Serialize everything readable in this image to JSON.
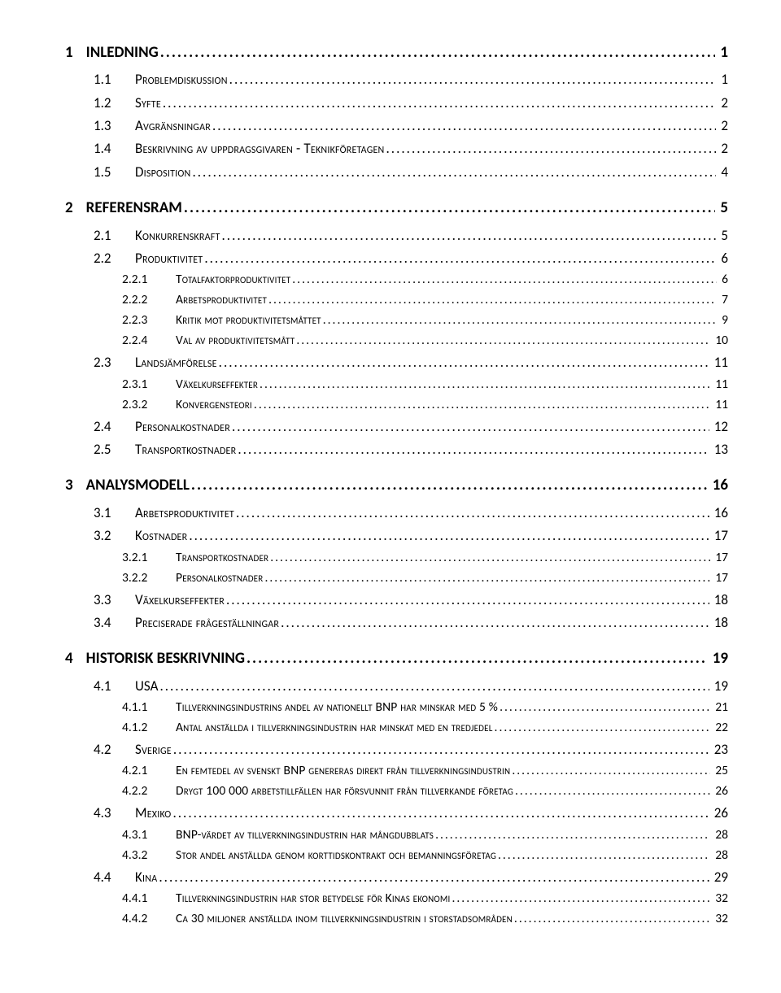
{
  "toc": [
    {
      "level": 1,
      "num": "1",
      "title": "INLEDNING",
      "page": "1",
      "smallcaps": false
    },
    {
      "level": 2,
      "num": "1.1",
      "title": "Problemdiskussion",
      "page": "1",
      "smallcaps": true
    },
    {
      "level": 2,
      "num": "1.2",
      "title": "Syfte",
      "page": "2",
      "smallcaps": true
    },
    {
      "level": 2,
      "num": "1.3",
      "title": "Avgränsningar",
      "page": "2",
      "smallcaps": true
    },
    {
      "level": 2,
      "num": "1.4",
      "title": "Beskrivning av uppdragsgivaren - Teknikföretagen",
      "page": "2",
      "smallcaps": true
    },
    {
      "level": 2,
      "num": "1.5",
      "title": "Disposition",
      "page": "4",
      "smallcaps": true
    },
    {
      "level": 1,
      "num": "2",
      "title": "REFERENSRAM",
      "page": "5",
      "smallcaps": false
    },
    {
      "level": 2,
      "num": "2.1",
      "title": "Konkurrenskraft",
      "page": "5",
      "smallcaps": true
    },
    {
      "level": 2,
      "num": "2.2",
      "title": "Produktivitet",
      "page": "6",
      "smallcaps": true
    },
    {
      "level": 3,
      "num": "2.2.1",
      "title": "Totalfaktorproduktivitet",
      "page": "6",
      "smallcaps": true
    },
    {
      "level": 3,
      "num": "2.2.2",
      "title": "Arbetsproduktivitet",
      "page": "7",
      "smallcaps": true
    },
    {
      "level": 3,
      "num": "2.2.3",
      "title": "Kritik mot produktivitetsmåttet",
      "page": "9",
      "smallcaps": true
    },
    {
      "level": 3,
      "num": "2.2.4",
      "title": "Val av produktivitetsmått",
      "page": "10",
      "smallcaps": true
    },
    {
      "level": 2,
      "num": "2.3",
      "title": "Landsjämförelse",
      "page": "11",
      "smallcaps": true
    },
    {
      "level": 3,
      "num": "2.3.1",
      "title": "Växelkurseffekter",
      "page": "11",
      "smallcaps": true
    },
    {
      "level": 3,
      "num": "2.3.2",
      "title": "Konvergensteori",
      "page": "11",
      "smallcaps": true
    },
    {
      "level": 2,
      "num": "2.4",
      "title": "Personalkostnader",
      "page": "12",
      "smallcaps": true
    },
    {
      "level": 2,
      "num": "2.5",
      "title": "Transportkostnader",
      "page": "13",
      "smallcaps": true
    },
    {
      "level": 1,
      "num": "3",
      "title": "ANALYSMODELL",
      "page": "16",
      "smallcaps": false
    },
    {
      "level": 2,
      "num": "3.1",
      "title": "Arbetsproduktivitet",
      "page": "16",
      "smallcaps": true
    },
    {
      "level": 2,
      "num": "3.2",
      "title": "Kostnader",
      "page": "17",
      "smallcaps": true
    },
    {
      "level": 3,
      "num": "3.2.1",
      "title": "Transportkostnader",
      "page": "17",
      "smallcaps": true
    },
    {
      "level": 3,
      "num": "3.2.2",
      "title": "Personalkostnader",
      "page": "17",
      "smallcaps": true
    },
    {
      "level": 2,
      "num": "3.3",
      "title": "Växelkurseffekter",
      "page": "18",
      "smallcaps": true
    },
    {
      "level": 2,
      "num": "3.4",
      "title": "Preciserade frågeställningar",
      "page": "18",
      "smallcaps": true
    },
    {
      "level": 1,
      "num": "4",
      "title": "HISTORISK BESKRIVNING",
      "page": "19",
      "smallcaps": false
    },
    {
      "level": 2,
      "num": "4.1",
      "title": "USA",
      "page": "19",
      "smallcaps": false
    },
    {
      "level": 3,
      "num": "4.1.1",
      "title": "Tillverkningsindustrins andel av nationellt BNP har minskar med 5 %",
      "page": "21",
      "smallcaps": true
    },
    {
      "level": 3,
      "num": "4.1.2",
      "title": "Antal anställda i tillverkningsindustrin har minskat med en tredjedel",
      "page": "22",
      "smallcaps": true
    },
    {
      "level": 2,
      "num": "4.2",
      "title": "Sverige",
      "page": "23",
      "smallcaps": true
    },
    {
      "level": 3,
      "num": "4.2.1",
      "title": "En femtedel av svenskt BNP genereras direkt från tillverkningsindustrin",
      "page": "25",
      "smallcaps": true
    },
    {
      "level": 3,
      "num": "4.2.2",
      "title": "Drygt 100 000 arbetstillfällen har försvunnit från tillverkande företag",
      "page": "26",
      "smallcaps": true
    },
    {
      "level": 2,
      "num": "4.3",
      "title": "Mexiko",
      "page": "26",
      "smallcaps": true
    },
    {
      "level": 3,
      "num": "4.3.1",
      "title": "BNP-värdet av tillverkningsindustrin har mångdubblats",
      "page": "28",
      "smallcaps": true
    },
    {
      "level": 3,
      "num": "4.3.2",
      "title": "Stor andel anställda genom korttidskontrakt och bemanningsföretag",
      "page": "28",
      "smallcaps": true
    },
    {
      "level": 2,
      "num": "4.4",
      "title": "Kina",
      "page": "29",
      "smallcaps": true
    },
    {
      "level": 3,
      "num": "4.4.1",
      "title": "Tillverkningsindustrin har stor betydelse för Kinas ekonomi",
      "page": "32",
      "smallcaps": true
    },
    {
      "level": 3,
      "num": "4.4.2",
      "title": "Ca 30 miljoner anställda inom tillverkningsindustrin i storstadsområden",
      "page": "32",
      "smallcaps": true
    }
  ]
}
